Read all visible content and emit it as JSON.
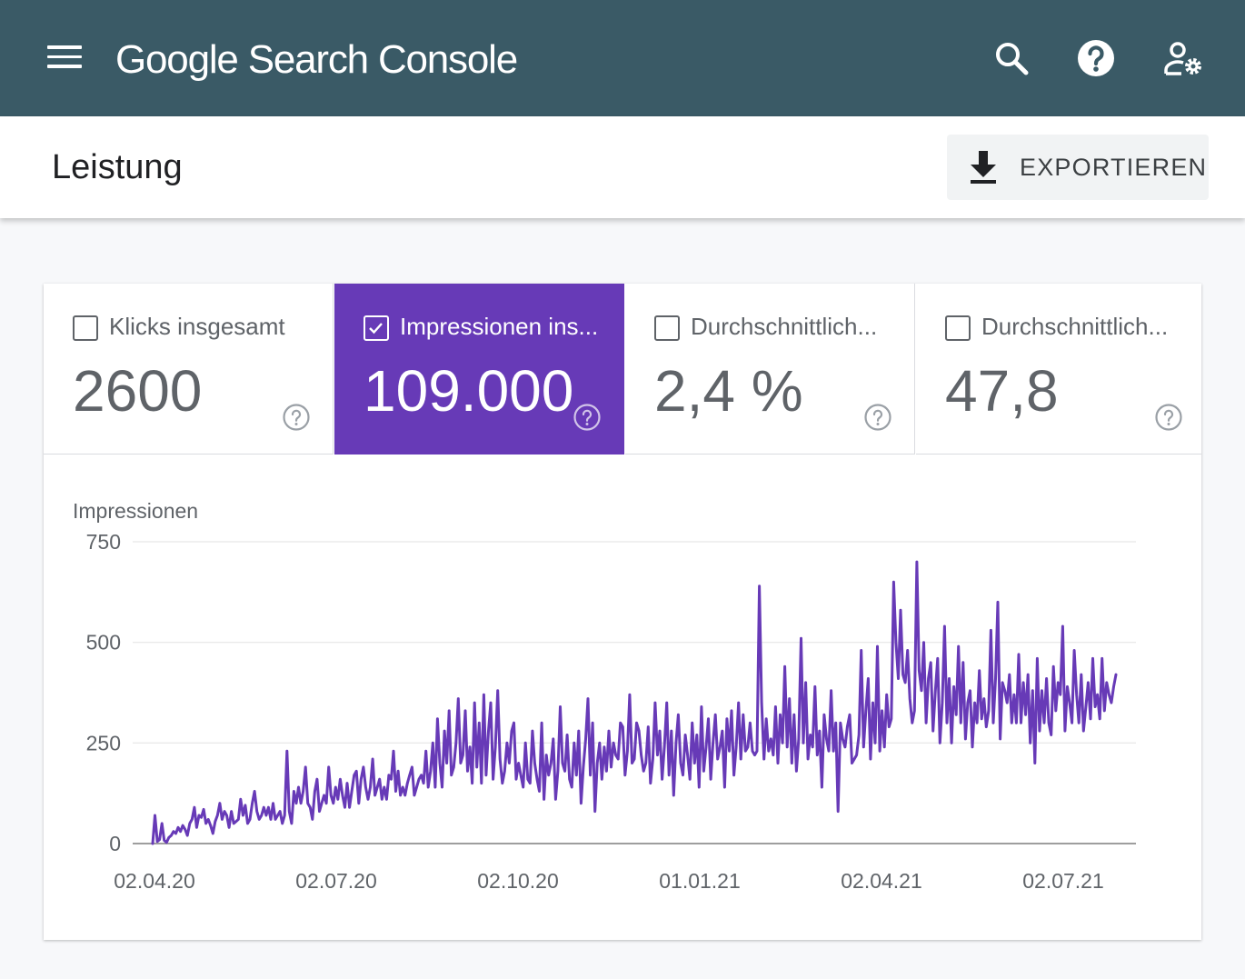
{
  "header": {
    "title": "Google Search Console",
    "icons": [
      "menu-icon",
      "search-icon",
      "help-icon",
      "account-settings-icon"
    ]
  },
  "page": {
    "title": "Leistung",
    "export_label": "EXPORTIEREN"
  },
  "metrics": [
    {
      "label": "Klicks insgesamt",
      "value": "2600",
      "selected": false
    },
    {
      "label": "Impressionen ins...",
      "value": "109.000",
      "selected": true
    },
    {
      "label": "Durchschnittlich...",
      "value": "2,4 %",
      "selected": false
    },
    {
      "label": "Durchschnittlich...",
      "value": "47,8",
      "selected": false
    }
  ],
  "colors": {
    "appbar": "#3a5a66",
    "accent": "#673ab7",
    "series": "#673ab7"
  },
  "chart_data": {
    "type": "line",
    "title": "",
    "ylabel": "Impressionen",
    "xlabel": "",
    "ylim": [
      0,
      750
    ],
    "yticks": [
      0,
      250,
      500,
      750
    ],
    "xtick_labels": [
      "02.04.20",
      "02.07.20",
      "02.10.20",
      "01.01.21",
      "02.04.21",
      "02.07.21"
    ],
    "x_start": "02.04.20",
    "x_end": "07.2021",
    "grid": true,
    "series": [
      {
        "name": "Impressionen",
        "color": "#673ab7",
        "values": [
          0,
          70,
          5,
          10,
          50,
          8,
          3,
          15,
          20,
          30,
          25,
          40,
          30,
          45,
          35,
          20,
          50,
          60,
          90,
          40,
          70,
          65,
          85,
          50,
          60,
          45,
          25,
          55,
          70,
          100,
          60,
          80,
          70,
          40,
          80,
          50,
          55,
          60,
          110,
          70,
          95,
          50,
          60,
          100,
          130,
          80,
          60,
          70,
          90,
          70,
          90,
          60,
          100,
          60,
          70,
          80,
          50,
          70,
          230,
          80,
          50,
          130,
          100,
          140,
          100,
          130,
          190,
          100,
          90,
          60,
          130,
          160,
          80,
          100,
          120,
          100,
          190,
          120,
          100,
          140,
          110,
          160,
          120,
          90,
          150,
          90,
          130,
          170,
          180,
          100,
          160,
          190,
          140,
          110,
          140,
          210,
          120,
          140,
          160,
          110,
          140,
          110,
          170,
          160,
          230,
          130,
          180,
          120,
          140,
          120,
          150,
          170,
          190,
          120,
          140,
          160,
          170,
          150,
          230,
          140,
          180,
          250,
          140,
          310,
          200,
          140,
          280,
          200,
          330,
          170,
          190,
          250,
          360,
          200,
          220,
          330,
          180,
          240,
          150,
          350,
          190,
          300,
          150,
          370,
          170,
          280,
          350,
          160,
          240,
          380,
          210,
          150,
          180,
          250,
          200,
          280,
          300,
          160,
          200,
          170,
          140,
          250,
          160,
          150,
          280,
          200,
          160,
          130,
          300,
          110,
          220,
          170,
          200,
          260,
          110,
          180,
          340,
          200,
          180,
          270,
          160,
          140,
          250,
          170,
          280,
          100,
          190,
          260,
          360,
          170,
          300,
          80,
          200,
          250,
          160,
          240,
          180,
          280,
          190,
          250,
          220,
          210,
          300,
          290,
          170,
          230,
          370,
          200,
          210,
          300,
          280,
          220,
          180,
          200,
          290,
          150,
          210,
          350,
          220,
          280,
          160,
          240,
          350,
          170,
          280,
          120,
          250,
          320,
          200,
          170,
          270,
          220,
          160,
          300,
          200,
          270,
          140,
          340,
          180,
          240,
          310,
          160,
          250,
          320,
          210,
          240,
          280,
          140,
          310,
          230,
          330,
          170,
          240,
          350,
          210,
          320,
          230,
          240,
          300,
          230,
          220,
          230,
          640,
          350,
          210,
          310,
          230,
          260,
          220,
          340,
          200,
          320,
          250,
          440,
          240,
          360,
          200,
          320,
          180,
          260,
          510,
          250,
          400,
          210,
          270,
          240,
          390,
          220,
          280,
          140,
          320,
          260,
          230,
          380,
          230,
          300,
          80,
          300,
          260,
          240,
          290,
          320,
          200,
          210,
          220,
          270,
          480,
          240,
          330,
          410,
          210,
          350,
          250,
          490,
          230,
          330,
          240,
          370,
          290,
          310,
          650,
          500,
          410,
          580,
          420,
          400,
          480,
          360,
          300,
          330,
          700,
          430,
          380,
          500,
          300,
          410,
          450,
          280,
          380,
          460,
          250,
          350,
          540,
          300,
          410,
          250,
          390,
          320,
          490,
          300,
          450,
          260,
          350,
          380,
          240,
          350,
          300,
          430,
          310,
          360,
          290,
          330,
          530,
          300,
          410,
          600,
          260,
          400,
          380,
          350,
          420,
          300,
          370,
          300,
          470,
          300,
          400,
          320,
          420,
          250,
          380,
          200,
          460,
          280,
          380,
          300,
          410,
          300,
          270,
          440,
          330,
          400,
          370,
          540,
          280,
          390,
          350,
          300,
          480,
          370,
          300,
          420,
          280,
          340,
          400,
          310,
          460,
          340,
          370,
          310,
          460,
          330,
          400,
          370,
          350,
          390,
          420
        ]
      }
    ]
  }
}
